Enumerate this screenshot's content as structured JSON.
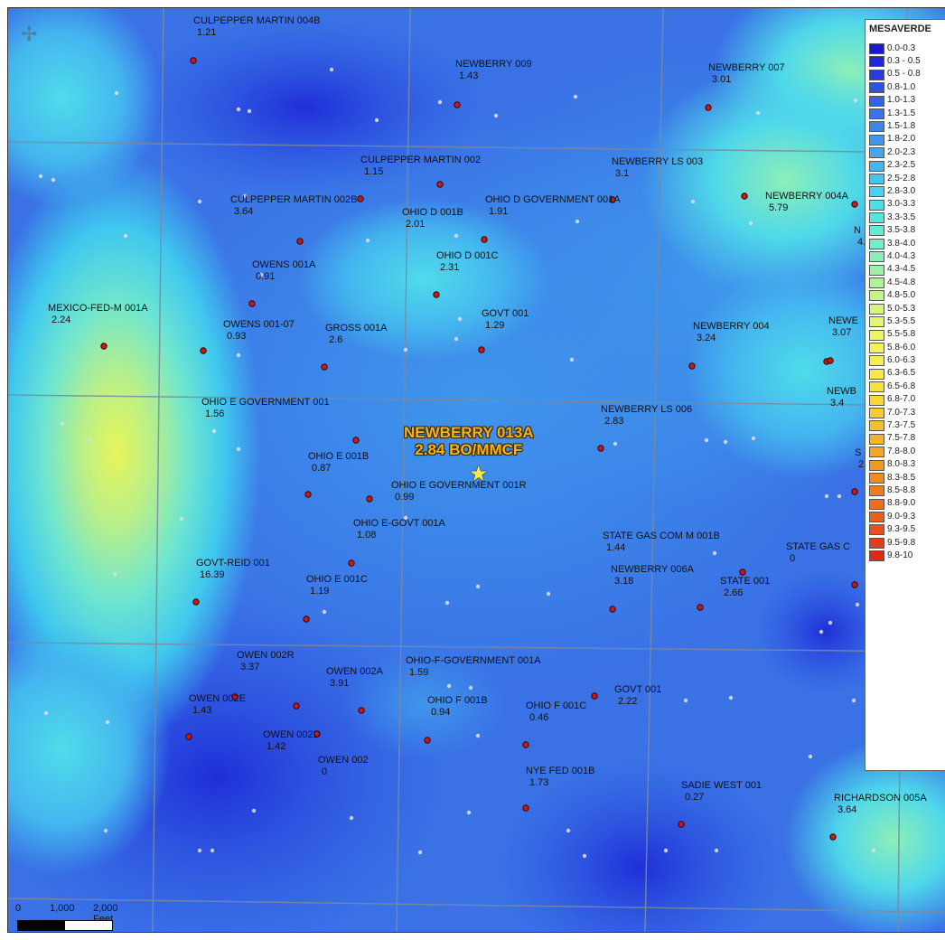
{
  "legend": {
    "title": "MESAVERDE",
    "entries": [
      {
        "label": "0.0-0.3",
        "color": "#1a1ad6"
      },
      {
        "label": "0.3 - 0.5",
        "color": "#2228d8"
      },
      {
        "label": "0.5 - 0.8",
        "color": "#2a3adc"
      },
      {
        "label": "0.8-1.0",
        "color": "#3050e0"
      },
      {
        "label": "1.0-1.3",
        "color": "#3563e4"
      },
      {
        "label": "1.3-1.5",
        "color": "#3a74e8"
      },
      {
        "label": "1.5-1.8",
        "color": "#3c86ea"
      },
      {
        "label": "1.8-2.0",
        "color": "#3f96ec"
      },
      {
        "label": "2.0-2.3",
        "color": "#43a6ee"
      },
      {
        "label": "2.3-2.5",
        "color": "#46b6ef"
      },
      {
        "label": "2.5-2.8",
        "color": "#48c4ef"
      },
      {
        "label": "2.8-3.0",
        "color": "#4ad2ef"
      },
      {
        "label": "3.0-3.3",
        "color": "#4cdeeb"
      },
      {
        "label": "3.3-3.5",
        "color": "#55e6e0"
      },
      {
        "label": "3.5-3.8",
        "color": "#66ead4"
      },
      {
        "label": "3.8-4.0",
        "color": "#78ecc6"
      },
      {
        "label": "4.0-4.3",
        "color": "#8aeeb8"
      },
      {
        "label": "4.3-4.5",
        "color": "#9cf0aa"
      },
      {
        "label": "4.5-4.8",
        "color": "#b0f29a"
      },
      {
        "label": "4.8-5.0",
        "color": "#c2f48c"
      },
      {
        "label": "5.0-5.3",
        "color": "#d4f67e"
      },
      {
        "label": "5.3-5.5",
        "color": "#e2f670"
      },
      {
        "label": "5.5-5.8",
        "color": "#ecf464"
      },
      {
        "label": "5.8-6.0",
        "color": "#f2f25a"
      },
      {
        "label": "6.0-6.3",
        "color": "#f6ee50"
      },
      {
        "label": "6.3-6.5",
        "color": "#f8e846"
      },
      {
        "label": "6.5-6.8",
        "color": "#fae03c"
      },
      {
        "label": "6.8-7.0",
        "color": "#fad634"
      },
      {
        "label": "7.0-7.3",
        "color": "#f8cc2e"
      },
      {
        "label": "7.3-7.5",
        "color": "#f6c02a"
      },
      {
        "label": "7.5-7.8",
        "color": "#f4b428"
      },
      {
        "label": "7.8-8.0",
        "color": "#f2a826"
      },
      {
        "label": "8.0-8.3",
        "color": "#f09a24"
      },
      {
        "label": "8.3-8.5",
        "color": "#ee8c22"
      },
      {
        "label": "8.5-8.8",
        "color": "#ec7e20"
      },
      {
        "label": "8.8-9.0",
        "color": "#ea701e"
      },
      {
        "label": "9.0-9.3",
        "color": "#e8601c"
      },
      {
        "label": "9.3-9.5",
        "color": "#e6501a"
      },
      {
        "label": "9.5-9.8",
        "color": "#e43e18"
      },
      {
        "label": "9.8-10",
        "color": "#e02a16"
      }
    ]
  },
  "featured_well": {
    "name": "NEWBERRY 013A",
    "value": "2.84 BO/MMCF"
  },
  "wells": [
    {
      "name": "CULPEPPER MARTIN 004B",
      "value": "1.21"
    },
    {
      "name": "NEWBERRY 009",
      "value": "1.43"
    },
    {
      "name": "NEWBERRY 007",
      "value": "3.01"
    },
    {
      "name": "CULPEPPER MARTIN 002",
      "value": "1.15"
    },
    {
      "name": "NEWBERRY LS 003",
      "value": "3.1"
    },
    {
      "name": "CULPEPPER MARTIN 002B",
      "value": "3.64"
    },
    {
      "name": "OHIO D 001B",
      "value": "2.01"
    },
    {
      "name": "OHIO D GOVERNMENT 001A",
      "value": "1.91"
    },
    {
      "name": "NEWBERRY 004A",
      "value": "5.79"
    },
    {
      "name": "N",
      "value": "4."
    },
    {
      "name": "OHIO D 001C",
      "value": "2.31"
    },
    {
      "name": "OWENS 001A",
      "value": "0.91"
    },
    {
      "name": "MEXICO-FED-M 001A",
      "value": "2.24"
    },
    {
      "name": "GOVT 001",
      "value": "1.29"
    },
    {
      "name": "OWENS 001-07",
      "value": "0.93"
    },
    {
      "name": "GROSS 001A",
      "value": "2.6"
    },
    {
      "name": "NEWBERRY 004",
      "value": "3.24"
    },
    {
      "name": "NEWE",
      "value": "3.07"
    },
    {
      "name": "NEWB",
      "value": "3.4"
    },
    {
      "name": "OHIO E GOVERNMENT 001",
      "value": "1.56"
    },
    {
      "name": "NEWBERRY LS 006",
      "value": "2.83"
    },
    {
      "name": "OHIO E 001B",
      "value": "0.87"
    },
    {
      "name": "S",
      "value": "2"
    },
    {
      "name": "OHIO E GOVERNMENT 001R",
      "value": "0.99"
    },
    {
      "name": "OHIO E-GOVT 001A",
      "value": "1.08"
    },
    {
      "name": "STATE GAS COM M 001B",
      "value": "1.44"
    },
    {
      "name": "STATE GAS C",
      "value": "0"
    },
    {
      "name": "GOVT-REID 001",
      "value": "16.39"
    },
    {
      "name": "OHIO E 001C",
      "value": "1.19"
    },
    {
      "name": "NEWBERRY 006A",
      "value": "3.18"
    },
    {
      "name": "STATE 001",
      "value": "2.66"
    },
    {
      "name": "OWEN 002R",
      "value": "3.37"
    },
    {
      "name": "OHIO-F-GOVERNMENT 001A",
      "value": "1.59"
    },
    {
      "name": "OWEN 002A",
      "value": "3.91"
    },
    {
      "name": "GOVT 001",
      "value": "2.22"
    },
    {
      "name": "OWEN 002E",
      "value": "1.43"
    },
    {
      "name": "OHIO F 001B",
      "value": "0.94"
    },
    {
      "name": "OHIO F 001C",
      "value": "0.46"
    },
    {
      "name": "OWEN 002D",
      "value": "1.42"
    },
    {
      "name": "OWEN 002",
      "value": "0"
    },
    {
      "name": "NYE FED 001B",
      "value": "1.73"
    },
    {
      "name": "SADIE WEST 001",
      "value": "0.27"
    },
    {
      "name": "RICHARDSON 005A",
      "value": "3.64"
    }
  ],
  "scale_bar": {
    "label_0": "0",
    "label_1": "1,000",
    "label_2": "2,000 Feet"
  }
}
